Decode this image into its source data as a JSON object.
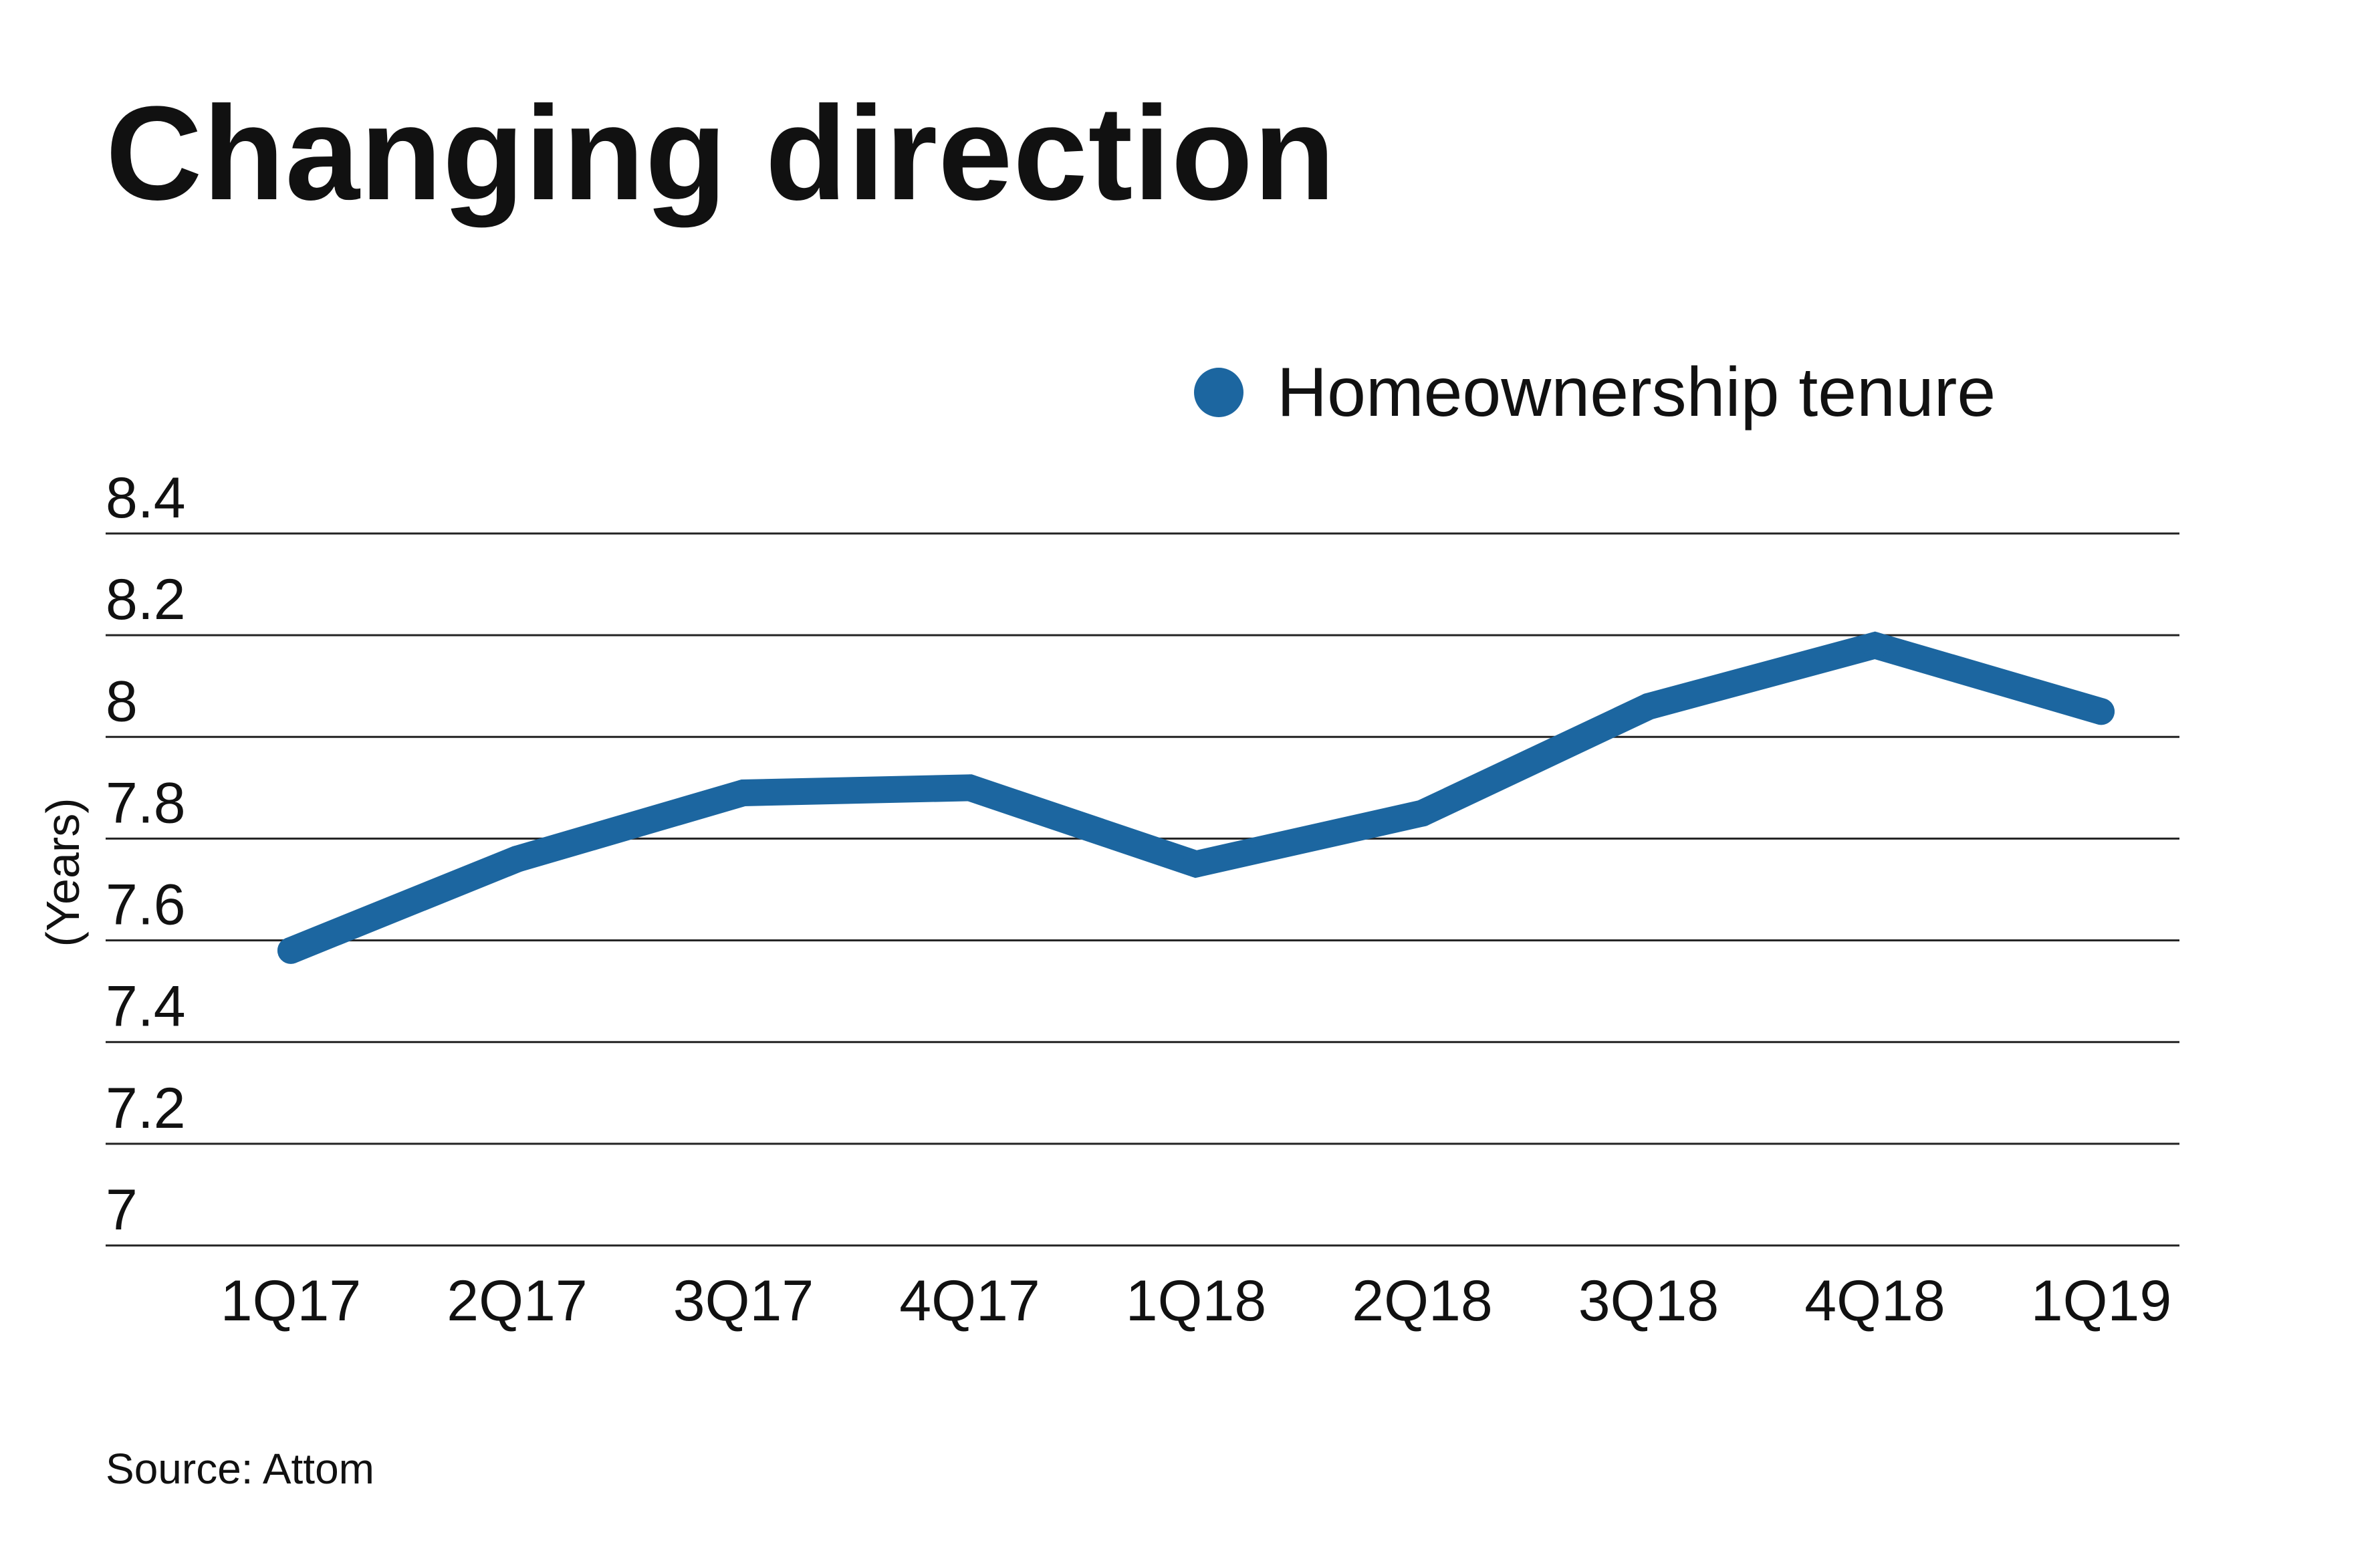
{
  "title": "Changing direction",
  "source": "Source: Attom",
  "chart_data": {
    "type": "line",
    "categories": [
      "1Q17",
      "2Q17",
      "3Q17",
      "4Q17",
      "1Q18",
      "2Q18",
      "3Q18",
      "4Q18",
      "1Q19"
    ],
    "series": [
      {
        "name": "Homeownership tenure",
        "color": "#1c66a0",
        "values": [
          7.58,
          7.76,
          7.89,
          7.9,
          7.75,
          7.85,
          8.06,
          8.18,
          8.05
        ]
      }
    ],
    "ylabel": "(Years)",
    "xlabel": "",
    "ylim": [
      7,
      8.4
    ],
    "yticks": [
      "8.4",
      "8.2",
      "8",
      "7.8",
      "7.6",
      "7.4",
      "7.2",
      "7"
    ],
    "grid": true,
    "legend": "top-right"
  }
}
